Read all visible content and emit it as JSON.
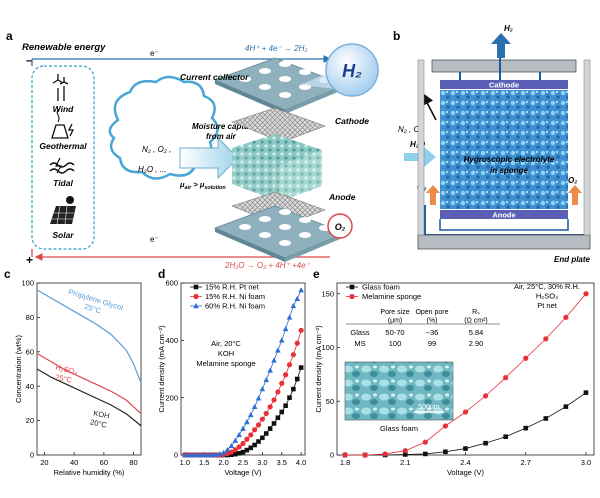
{
  "panel_a": {
    "letter": "a",
    "renewable_title": "Renewable energy",
    "sources": [
      "Wind",
      "Geothermal",
      "Tidal",
      "Solar"
    ],
    "minus": "–",
    "plus": "+",
    "electron": "e⁻",
    "cathode_reaction": "4H⁺ + 4e⁻ → 2H₂",
    "anode_reaction": "2H₂O → O₂ + 4H⁺ +4e⁻",
    "h2_bubble": "H₂",
    "o2_bubble": "O₂",
    "current_collector": "Current collector",
    "cathode": "Cathode",
    "anode": "Anode",
    "moisture_line1": "Moisture capture",
    "moisture_line2": "from air",
    "cloud_line1": "N₂ , O₂ ,",
    "cloud_line2": "H₂O , ...",
    "mu_main": "μ",
    "mu_air_sub": "air",
    "mu_gt": " > μ",
    "mu_sol_sub": "solution"
  },
  "panel_b": {
    "letter": "b",
    "h2": "H₂",
    "cathode": "Cathode",
    "anode": "Anode",
    "n2o2": "N₂ , O₂",
    "h2o": "H₂O",
    "electrolyte_line1": "Hygroscopic electrolyte",
    "electrolyte_line2": "in sponge",
    "o2": "O₂",
    "end_plate": "End plate"
  },
  "panel_c": {
    "letter": "c",
    "chart_data": {
      "type": "line",
      "xlabel": "Relative humidity (%)",
      "ylabel": "Concentration (wt%)",
      "xlim": [
        15,
        85
      ],
      "ylim": [
        0,
        100
      ],
      "xticks": [
        20,
        40,
        60,
        80
      ],
      "yticks": [
        0,
        20,
        40,
        60,
        80,
        100
      ],
      "series": [
        {
          "name": "Propylene Glycol",
          "label_line2": "25°C",
          "color": "#5b9bd5",
          "x": [
            15,
            25,
            35,
            45,
            55,
            65,
            75,
            80,
            85
          ],
          "y": [
            96,
            91,
            86,
            81,
            76,
            70,
            61,
            53,
            42
          ]
        },
        {
          "name": "H₂SO₄",
          "label_line2": "25°C",
          "color": "#e0484d",
          "x": [
            15,
            25,
            35,
            45,
            55,
            65,
            75,
            85
          ],
          "y": [
            59,
            54,
            49,
            45,
            41,
            37,
            32,
            24
          ]
        },
        {
          "name": "KOH",
          "label_line2": "20°C",
          "color": "#222222",
          "x": [
            15,
            25,
            35,
            45,
            55,
            65,
            75,
            85
          ],
          "y": [
            50,
            45,
            41,
            37,
            33,
            29,
            24,
            17
          ]
        }
      ]
    }
  },
  "panel_d": {
    "letter": "d",
    "annotation": [
      "Air, 20°C",
      "KOH",
      "Melamine sponge"
    ],
    "chart_data": {
      "type": "line",
      "xlabel": "Voltage (V)",
      "ylabel": "Current density (mA cm⁻²)",
      "xlim": [
        0.9,
        4.1
      ],
      "ylim": [
        0,
        600
      ],
      "xticks": [
        1.0,
        1.5,
        2.0,
        2.5,
        3.0,
        3.5,
        4.0
      ],
      "yticks": [
        0,
        200,
        400,
        600
      ],
      "series": [
        {
          "name": "15% R.H. Pt net",
          "color": "#111111",
          "marker": "square",
          "x": [
            1.0,
            1.1,
            1.2,
            1.3,
            1.4,
            1.5,
            1.6,
            1.7,
            1.8,
            1.9,
            2.0,
            2.1,
            2.2,
            2.3,
            2.4,
            2.5,
            2.6,
            2.7,
            2.8,
            2.9,
            3.0,
            3.1,
            3.2,
            3.3,
            3.4,
            3.5,
            3.6,
            3.7,
            3.8,
            3.9,
            4.0
          ],
          "y": [
            0,
            0,
            0,
            0,
            0,
            0,
            0,
            0,
            0,
            0,
            0,
            0,
            1,
            3,
            6,
            10,
            17,
            25,
            35,
            47,
            60,
            75,
            92,
            110,
            130,
            150,
            172,
            200,
            230,
            265,
            305
          ]
        },
        {
          "name": "15% R.H. Ni foam",
          "color": "#e8303a",
          "marker": "circle",
          "x": [
            1.0,
            1.1,
            1.2,
            1.3,
            1.4,
            1.5,
            1.6,
            1.7,
            1.8,
            1.9,
            2.0,
            2.1,
            2.2,
            2.3,
            2.4,
            2.5,
            2.6,
            2.7,
            2.8,
            2.9,
            3.0,
            3.1,
            3.2,
            3.3,
            3.4,
            3.5,
            3.6,
            3.7,
            3.8,
            3.9,
            4.0
          ],
          "y": [
            0,
            0,
            0,
            0,
            0,
            0,
            0,
            0,
            0,
            0,
            2,
            5,
            10,
            18,
            28,
            40,
            55,
            70,
            88,
            105,
            125,
            145,
            168,
            192,
            220,
            250,
            280,
            315,
            350,
            390,
            435
          ]
        },
        {
          "name": "60% R.H. Ni foam",
          "color": "#2e6fd6",
          "marker": "triangle",
          "x": [
            1.0,
            1.1,
            1.2,
            1.3,
            1.4,
            1.5,
            1.6,
            1.7,
            1.8,
            1.9,
            2.0,
            2.1,
            2.2,
            2.3,
            2.4,
            2.5,
            2.6,
            2.7,
            2.8,
            2.9,
            3.0,
            3.1,
            3.2,
            3.3,
            3.4,
            3.5,
            3.6,
            3.7,
            3.8,
            3.9,
            4.0
          ],
          "y": [
            0,
            0,
            0,
            0,
            0,
            0,
            0,
            0,
            1,
            3,
            8,
            18,
            32,
            50,
            70,
            92,
            115,
            140,
            168,
            198,
            230,
            262,
            295,
            330,
            365,
            400,
            440,
            480,
            520,
            545,
            575
          ]
        }
      ]
    }
  },
  "panel_e": {
    "letter": "e",
    "annotation": [
      "Air, 25°C, 30% R.H.",
      "H₂SO₄",
      "Pt net"
    ],
    "table": {
      "headers": [
        "",
        "Pore size\n(μm)",
        "Open pore\n(%)",
        "Rₛ\n(Ω cm²)"
      ],
      "rows": [
        [
          "Glass",
          "50-70",
          "~36",
          "5.84"
        ],
        [
          "MS",
          "100",
          "99",
          "2.90"
        ]
      ]
    },
    "inset_scale": "500μm",
    "inset_caption": "Glass foam",
    "chart_data": {
      "type": "line",
      "xlabel": "Voltage (V)",
      "ylabel": "Current density (mA cm⁻²)",
      "xlim": [
        1.76,
        3.04
      ],
      "ylim": [
        0,
        160
      ],
      "xticks": [
        1.8,
        2.1,
        2.4,
        2.7,
        3.0
      ],
      "yticks": [
        0,
        50,
        100,
        150
      ],
      "series": [
        {
          "name": "Glass foam",
          "color": "#111111",
          "marker": "square",
          "x": [
            1.8,
            1.9,
            2.0,
            2.1,
            2.2,
            2.3,
            2.4,
            2.5,
            2.6,
            2.7,
            2.8,
            2.9,
            3.0
          ],
          "y": [
            0,
            0,
            0,
            0.5,
            1,
            3,
            6,
            11,
            17,
            25,
            34,
            45,
            58
          ]
        },
        {
          "name": "Melamine sponge",
          "color": "#e8303a",
          "marker": "circle",
          "x": [
            1.8,
            1.9,
            2.0,
            2.1,
            2.2,
            2.3,
            2.4,
            2.5,
            2.6,
            2.7,
            2.8,
            2.9,
            3.0
          ],
          "y": [
            0,
            0,
            1,
            4,
            12,
            27,
            40,
            55,
            72,
            90,
            108,
            128,
            150
          ]
        }
      ]
    }
  }
}
